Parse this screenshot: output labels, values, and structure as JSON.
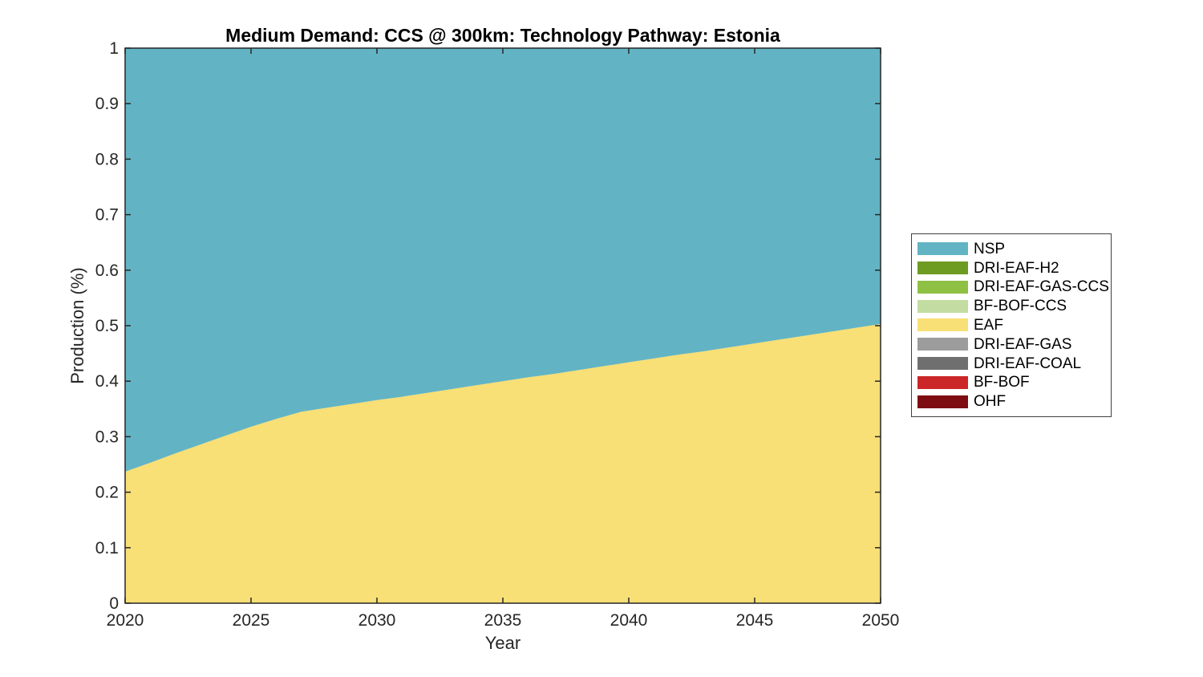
{
  "figure": {
    "background": "#ffffff"
  },
  "chart_data": {
    "type": "area",
    "stacked": true,
    "title": "Medium Demand: CCS @ 300km: Technology Pathway: Estonia",
    "xlabel": "Year",
    "ylabel": "Production (%)",
    "xlim": [
      2020,
      2050
    ],
    "ylim": [
      0,
      1
    ],
    "xticks": [
      2020,
      2025,
      2030,
      2035,
      2040,
      2045,
      2050
    ],
    "yticks": [
      0,
      0.1,
      0.2,
      0.3,
      0.4,
      0.5,
      0.6,
      0.7,
      0.8,
      0.9,
      1
    ],
    "grid": false,
    "legend_position": "right-outside",
    "axis_color": "#262626",
    "x": [
      2020,
      2021,
      2022,
      2023,
      2024,
      2025,
      2026,
      2027,
      2028,
      2029,
      2030,
      2031,
      2032,
      2033,
      2034,
      2035,
      2036,
      2037,
      2038,
      2039,
      2040,
      2041,
      2042,
      2043,
      2044,
      2045,
      2046,
      2047,
      2048,
      2049,
      2050
    ],
    "series": [
      {
        "name": "OHF",
        "color": "#7d0d11",
        "values": [
          0,
          0,
          0,
          0,
          0,
          0,
          0,
          0,
          0,
          0,
          0,
          0,
          0,
          0,
          0,
          0,
          0,
          0,
          0,
          0,
          0,
          0,
          0,
          0,
          0,
          0,
          0,
          0,
          0,
          0,
          0
        ]
      },
      {
        "name": "BF-BOF",
        "color": "#cb2628",
        "values": [
          0,
          0,
          0,
          0,
          0,
          0,
          0,
          0,
          0,
          0,
          0,
          0,
          0,
          0,
          0,
          0,
          0,
          0,
          0,
          0,
          0,
          0,
          0,
          0,
          0,
          0,
          0,
          0,
          0,
          0,
          0
        ]
      },
      {
        "name": "DRI-EAF-COAL",
        "color": "#6f6f6f",
        "values": [
          0,
          0,
          0,
          0,
          0,
          0,
          0,
          0,
          0,
          0,
          0,
          0,
          0,
          0,
          0,
          0,
          0,
          0,
          0,
          0,
          0,
          0,
          0,
          0,
          0,
          0,
          0,
          0,
          0,
          0,
          0
        ]
      },
      {
        "name": "DRI-EAF-GAS",
        "color": "#9c9c9c",
        "values": [
          0,
          0,
          0,
          0,
          0,
          0,
          0,
          0,
          0,
          0,
          0,
          0,
          0,
          0,
          0,
          0,
          0,
          0,
          0,
          0,
          0,
          0,
          0,
          0,
          0,
          0,
          0,
          0,
          0,
          0,
          0
        ]
      },
      {
        "name": "EAF",
        "color": "#f8df76",
        "values": [
          0.237,
          0.253,
          0.27,
          0.286,
          0.302,
          0.318,
          0.332,
          0.345,
          0.352,
          0.359,
          0.366,
          0.372,
          0.379,
          0.386,
          0.393,
          0.4,
          0.407,
          0.413,
          0.42,
          0.427,
          0.434,
          0.441,
          0.448,
          0.454,
          0.461,
          0.468,
          0.475,
          0.482,
          0.489,
          0.496,
          0.503
        ]
      },
      {
        "name": "BF-BOF-CCS",
        "color": "#c3dca2",
        "values": [
          0,
          0,
          0,
          0,
          0,
          0,
          0,
          0,
          0,
          0,
          0,
          0,
          0,
          0,
          0,
          0,
          0,
          0,
          0,
          0,
          0,
          0,
          0,
          0,
          0,
          0,
          0,
          0,
          0,
          0,
          0
        ]
      },
      {
        "name": "DRI-EAF-GAS-CCS",
        "color": "#8ec044",
        "values": [
          0,
          0,
          0,
          0,
          0,
          0,
          0,
          0,
          0,
          0,
          0,
          0,
          0,
          0,
          0,
          0,
          0,
          0,
          0,
          0,
          0,
          0,
          0,
          0,
          0,
          0,
          0,
          0,
          0,
          0,
          0
        ]
      },
      {
        "name": "DRI-EAF-H2",
        "color": "#6e9b22",
        "values": [
          0,
          0,
          0,
          0,
          0,
          0,
          0,
          0,
          0,
          0,
          0,
          0,
          0,
          0,
          0,
          0,
          0,
          0,
          0,
          0,
          0,
          0,
          0,
          0,
          0,
          0,
          0,
          0,
          0,
          0,
          0
        ]
      },
      {
        "name": "NSP",
        "color": "#62b4c4",
        "values": [
          0.763,
          0.747,
          0.73,
          0.714,
          0.698,
          0.682,
          0.668,
          0.655,
          0.648,
          0.641,
          0.634,
          0.628,
          0.621,
          0.614,
          0.607,
          0.6,
          0.593,
          0.587,
          0.58,
          0.573,
          0.566,
          0.559,
          0.552,
          0.546,
          0.539,
          0.532,
          0.525,
          0.518,
          0.511,
          0.504,
          0.497
        ]
      }
    ],
    "legend": [
      "NSP",
      "DRI-EAF-H2",
      "DRI-EAF-GAS-CCS",
      "BF-BOF-CCS",
      "EAF",
      "DRI-EAF-GAS",
      "DRI-EAF-COAL",
      "BF-BOF",
      "OHF"
    ]
  }
}
